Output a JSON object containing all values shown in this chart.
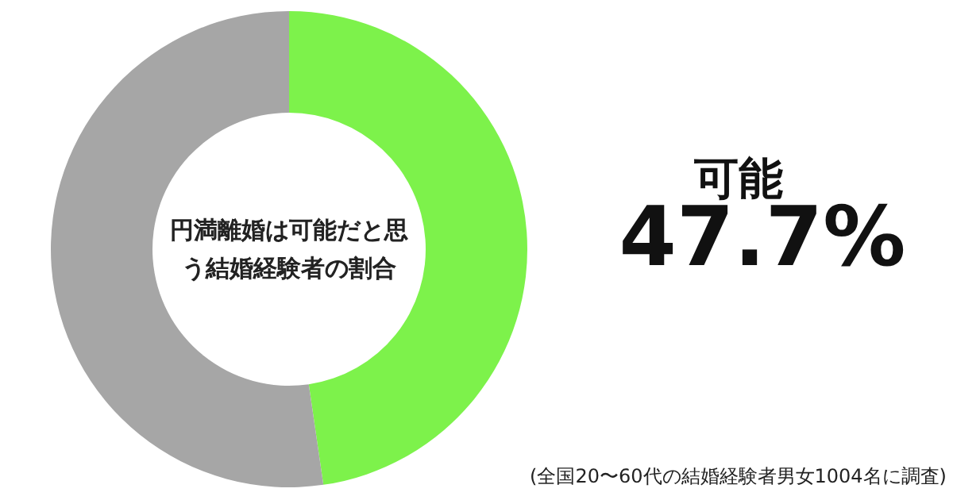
{
  "chart_data": {
    "type": "donut",
    "title": "円満離婚は可能だと思う結婚経験者の割合",
    "categories": [
      "可能",
      null
    ],
    "values": [
      47.7,
      52.3
    ],
    "colors": [
      "#7df24b",
      "#a6a6a6"
    ],
    "value_labels": [
      "47.7%",
      null
    ],
    "annotations": [
      "(全国20〜60代の結婚経験者男女1004名に調査)"
    ]
  }
}
